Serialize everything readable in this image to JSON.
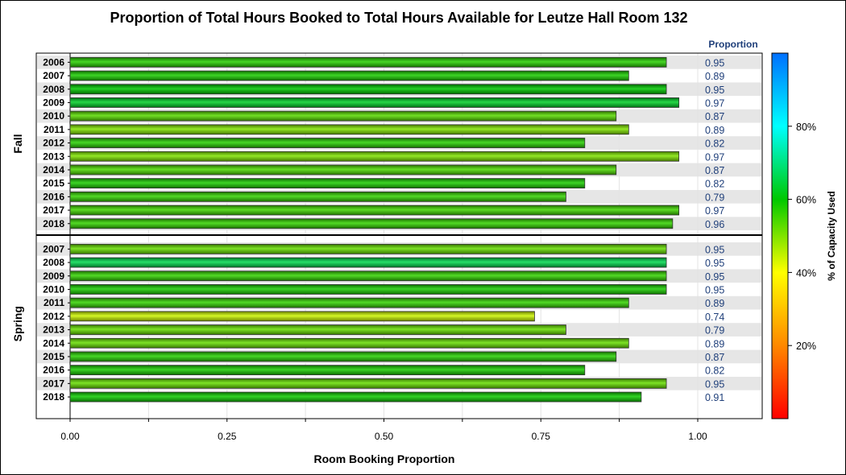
{
  "chart_data": {
    "type": "bar",
    "orientation": "horizontal",
    "title": "Proportion of Total Hours Booked to Total Hours Available for Leutze Hall Room 132",
    "xlabel": "Room Booking Proportion",
    "value_column_header": "Proportion",
    "xlim": [
      0,
      1.1
    ],
    "x_ticks": [
      "0.00",
      "0.25",
      "0.50",
      "0.75",
      "1.00"
    ],
    "grid": true,
    "colorbar": {
      "label": "% of Capacity Used",
      "range": [
        0,
        100
      ],
      "ticks": [
        "20%",
        "40%",
        "60%",
        "80%"
      ],
      "colors": [
        "#ff0000",
        "#ff8800",
        "#ffff00",
        "#00c800",
        "#00ffff",
        "#0070ff"
      ]
    },
    "groups": [
      {
        "name": "Fall",
        "categories": [
          "2006",
          "2007",
          "2008",
          "2009",
          "2010",
          "2011",
          "2012",
          "2013",
          "2014",
          "2015",
          "2016",
          "2017",
          "2018"
        ],
        "values": [
          0.95,
          0.89,
          0.95,
          0.97,
          0.87,
          0.89,
          0.82,
          0.97,
          0.87,
          0.82,
          0.79,
          0.97,
          0.96
        ],
        "labels": [
          "0.95",
          "0.89",
          "0.95",
          "0.97",
          "0.87",
          "0.89",
          "0.82",
          "0.97",
          "0.87",
          "0.82",
          "0.79",
          "0.97",
          "0.96"
        ],
        "capacity_pct": [
          57,
          58,
          60,
          63,
          53,
          50,
          57,
          50,
          54,
          58,
          56,
          55,
          56
        ]
      },
      {
        "name": "Spring",
        "categories": [
          "2007",
          "2008",
          "2009",
          "2010",
          "2011",
          "2012",
          "2013",
          "2014",
          "2015",
          "2016",
          "2017",
          "2018"
        ],
        "values": [
          0.95,
          0.95,
          0.95,
          0.95,
          0.89,
          0.74,
          0.79,
          0.89,
          0.87,
          0.82,
          0.95,
          0.91
        ],
        "labels": [
          "0.95",
          "0.95",
          "0.95",
          "0.95",
          "0.89",
          "0.74",
          "0.79",
          "0.89",
          "0.87",
          "0.82",
          "0.95",
          "0.91"
        ],
        "capacity_pct": [
          52,
          66,
          56,
          58,
          56,
          44,
          52,
          52,
          57,
          58,
          52,
          59
        ]
      }
    ]
  }
}
